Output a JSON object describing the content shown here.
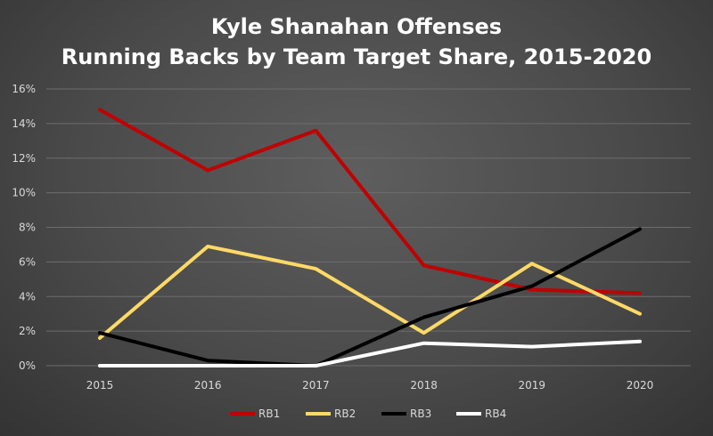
{
  "chart_data": {
    "type": "line",
    "title": [
      "Kyle Shanahan Offenses",
      "Running Backs by Team Target Share, 2015-2020"
    ],
    "x": [
      "2015",
      "2016",
      "2017",
      "2018",
      "2019",
      "2020"
    ],
    "yticks": [
      "0%",
      "2%",
      "4%",
      "6%",
      "8%",
      "10%",
      "12%",
      "14%",
      "16%"
    ],
    "ylim": [
      0,
      16
    ],
    "grid": true,
    "legend_position": "bottom",
    "series": [
      {
        "name": "RB1",
        "color": "#c00000",
        "values": [
          14.8,
          11.3,
          13.6,
          5.8,
          4.4,
          4.2
        ]
      },
      {
        "name": "RB2",
        "color": "#ffd966",
        "values": [
          1.6,
          6.9,
          5.6,
          1.9,
          5.9,
          3.0
        ]
      },
      {
        "name": "RB3",
        "color": "#000000",
        "values": [
          1.9,
          0.3,
          0.0,
          2.8,
          4.6,
          7.9
        ]
      },
      {
        "name": "RB4",
        "color": "#ffffff",
        "values": [
          0.0,
          0.0,
          0.0,
          1.3,
          1.1,
          1.4
        ]
      }
    ]
  }
}
